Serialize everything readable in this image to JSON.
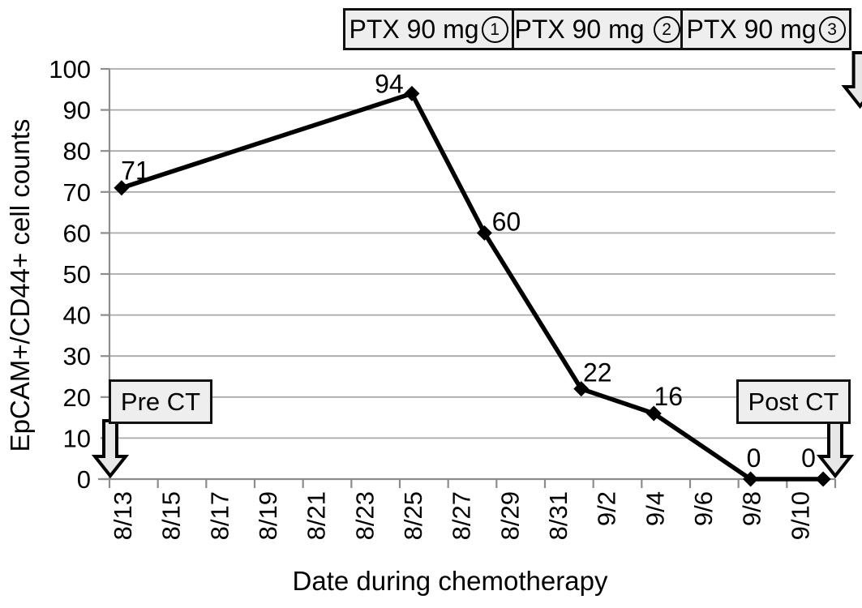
{
  "figure": {
    "xlabel": "Date during chemotherapy",
    "ylabel": "EpCAM+/CD44+ cell counts"
  },
  "chart_data": {
    "type": "line",
    "title": "",
    "xlabel": "Date during chemotherapy",
    "ylabel": "EpCAM+/CD44+ cell counts",
    "ylim": [
      0,
      100
    ],
    "ytick_interval": 10,
    "ytick_labels": [
      "0",
      "10",
      "20",
      "30",
      "40",
      "50",
      "60",
      "70",
      "80",
      "90",
      "100"
    ],
    "xtick_labels": [
      "8/13",
      "8/15",
      "8/17",
      "8/19",
      "8/21",
      "8/23",
      "8/25",
      "8/27",
      "8/29",
      "8/31",
      "9/2",
      "9/4",
      "9/6",
      "9/8",
      "9/10"
    ],
    "x_start_date": "8/13",
    "days_total": 30,
    "grid": true,
    "legend": "none",
    "series": [
      {
        "name": "EpCAM+/CD44+ cell counts",
        "points": [
          {
            "date": "8/13",
            "day_index": 0,
            "value": 71,
            "label": "71",
            "label_offset": [
              17,
              -22
            ]
          },
          {
            "date": "8/25",
            "day_index": 12,
            "value": 94,
            "label": "94",
            "label_offset": [
              -28,
              -13
            ]
          },
          {
            "date": "8/28",
            "day_index": 15,
            "value": 60,
            "label": "60",
            "label_offset": [
              27,
              -15
            ]
          },
          {
            "date": "9/1",
            "day_index": 19,
            "value": 22,
            "label": "22",
            "label_offset": [
              20,
              -21
            ]
          },
          {
            "date": "9/4",
            "day_index": 22,
            "value": 16,
            "label": "16",
            "label_offset": [
              18,
              -22
            ]
          },
          {
            "date": "9/8",
            "day_index": 26,
            "value": 0,
            "label": "0",
            "label_offset": [
              4,
              -27
            ]
          },
          {
            "date": "9/11",
            "day_index": 29,
            "value": 0,
            "label": "0",
            "label_offset": [
              -18,
              -27
            ]
          }
        ]
      }
    ]
  },
  "annotations": {
    "ptx_boxes": [
      {
        "full_label": "PTX 90 mg①",
        "text": "PTX 90 mg",
        "circled_number": "1",
        "arrow_day_index": 13
      },
      {
        "full_label": "PTX 90 mg ②",
        "text": "PTX 90 mg",
        "circled_number": "2",
        "arrow_day_index": 19.5
      },
      {
        "full_label": "PTX 90 mg③",
        "text": "PTX 90 mg",
        "circled_number": "3",
        "arrow_day_index": 26.2
      }
    ],
    "pre_ct": {
      "label": "Pre CT"
    },
    "post_ct": {
      "label": "Post CT"
    }
  },
  "colors": {
    "line": "#000000",
    "marker": "#000000",
    "grid": "#a8a8a8",
    "axis": "#8c8c8c",
    "box_fill": "#eeeeee",
    "arrow_fill": "#e7e7e7",
    "arrow_stroke": "#000000",
    "text": "#000000"
  }
}
